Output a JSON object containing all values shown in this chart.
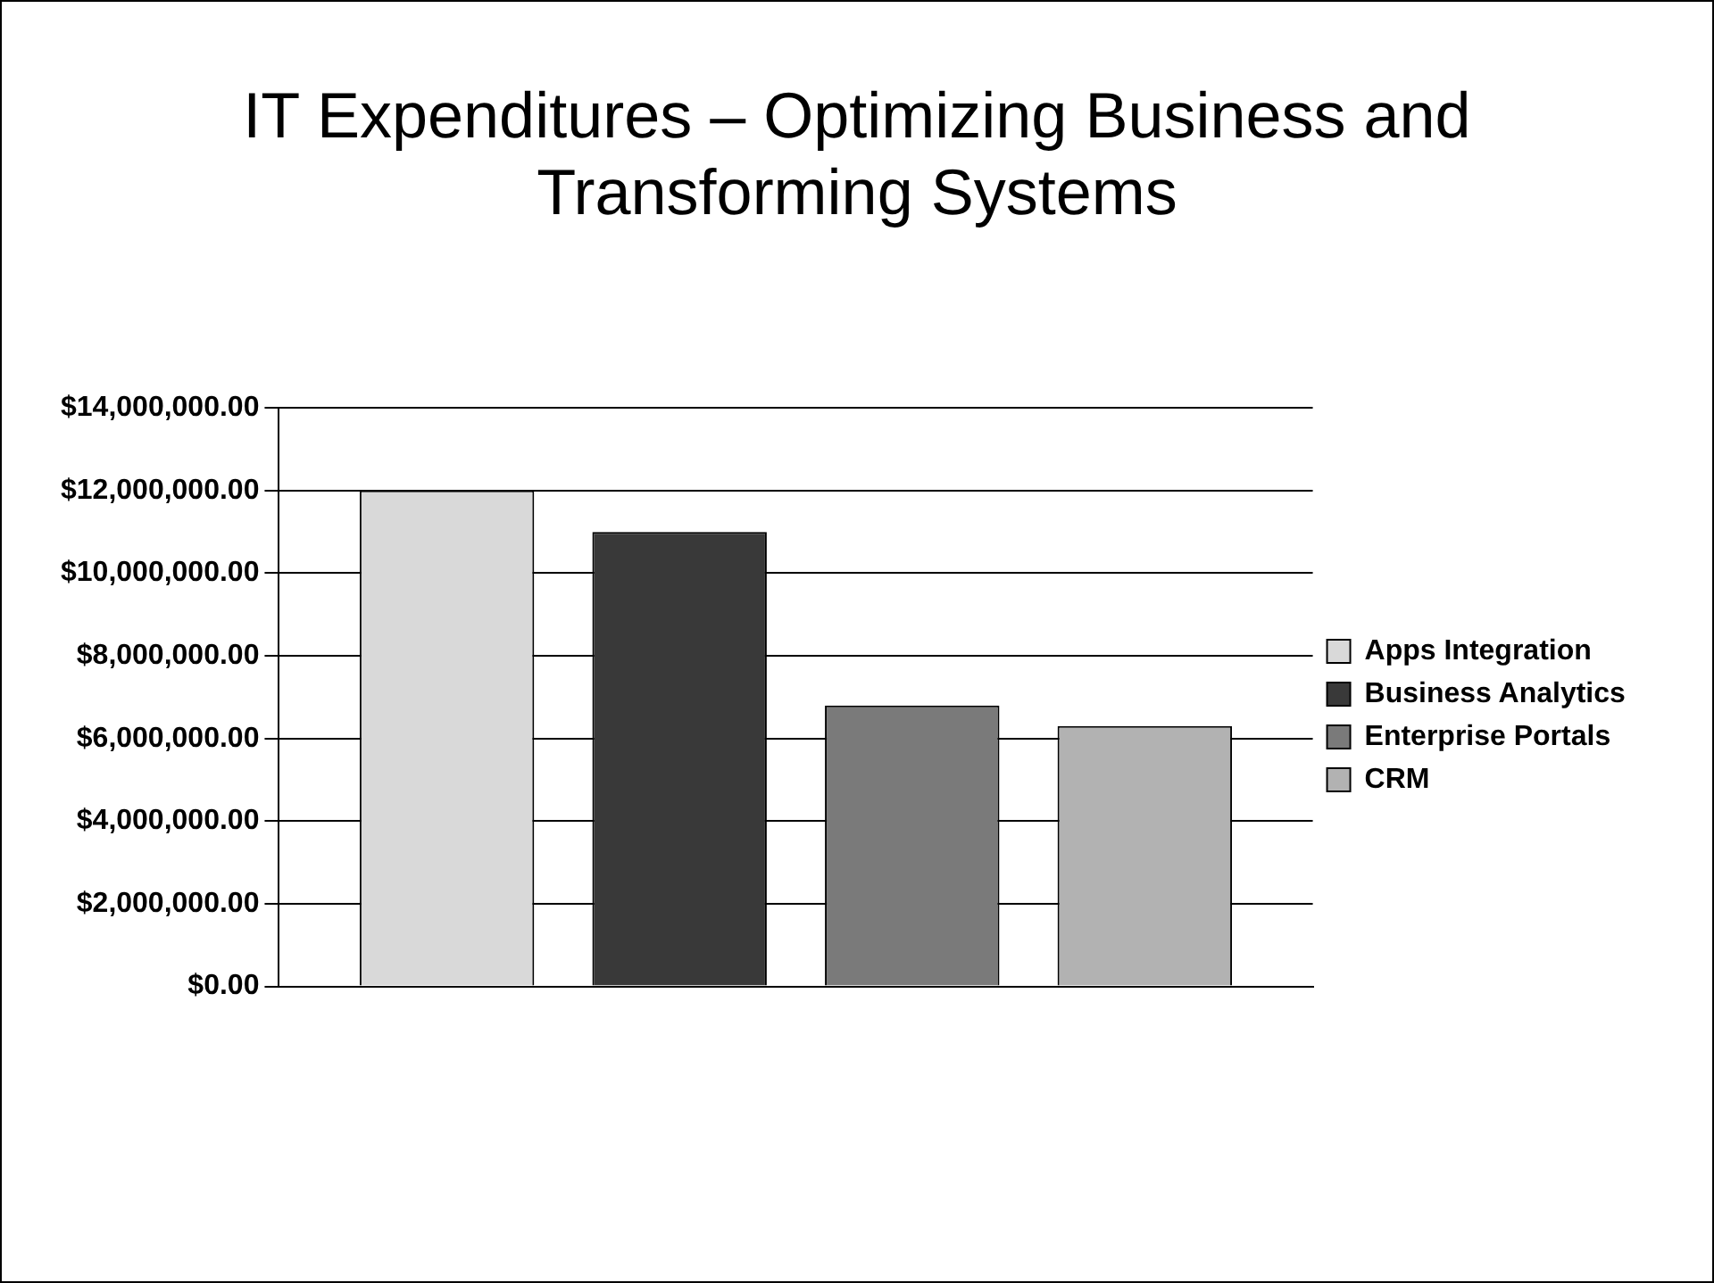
{
  "chart_data": {
    "type": "bar",
    "title": "IT Expenditures – Optimizing Business and Transforming Systems",
    "categories": [
      null
    ],
    "series": [
      {
        "name": "Apps Integration",
        "color": "#d9d9d9",
        "values": [
          12000000
        ]
      },
      {
        "name": "Business Analytics",
        "color": "#393939",
        "values": [
          11000000
        ]
      },
      {
        "name": "Enterprise Portals",
        "color": "#7a7a7a",
        "values": [
          6800000
        ]
      },
      {
        "name": "CRM",
        "color": "#b2b2b2",
        "values": [
          6300000
        ]
      }
    ],
    "ylim": [
      0,
      14000000
    ],
    "yticks": [
      {
        "value": 0,
        "label": "$0.00"
      },
      {
        "value": 2000000,
        "label": "$2,000,000.00"
      },
      {
        "value": 4000000,
        "label": "$4,000,000.00"
      },
      {
        "value": 6000000,
        "label": "$6,000,000.00"
      },
      {
        "value": 8000000,
        "label": "$8,000,000.00"
      },
      {
        "value": 10000000,
        "label": "$10,000,000.00"
      },
      {
        "value": 12000000,
        "label": "$12,000,000.00"
      },
      {
        "value": 14000000,
        "label": "$14,000,000.00"
      }
    ],
    "grid": "y",
    "legend": "right"
  }
}
